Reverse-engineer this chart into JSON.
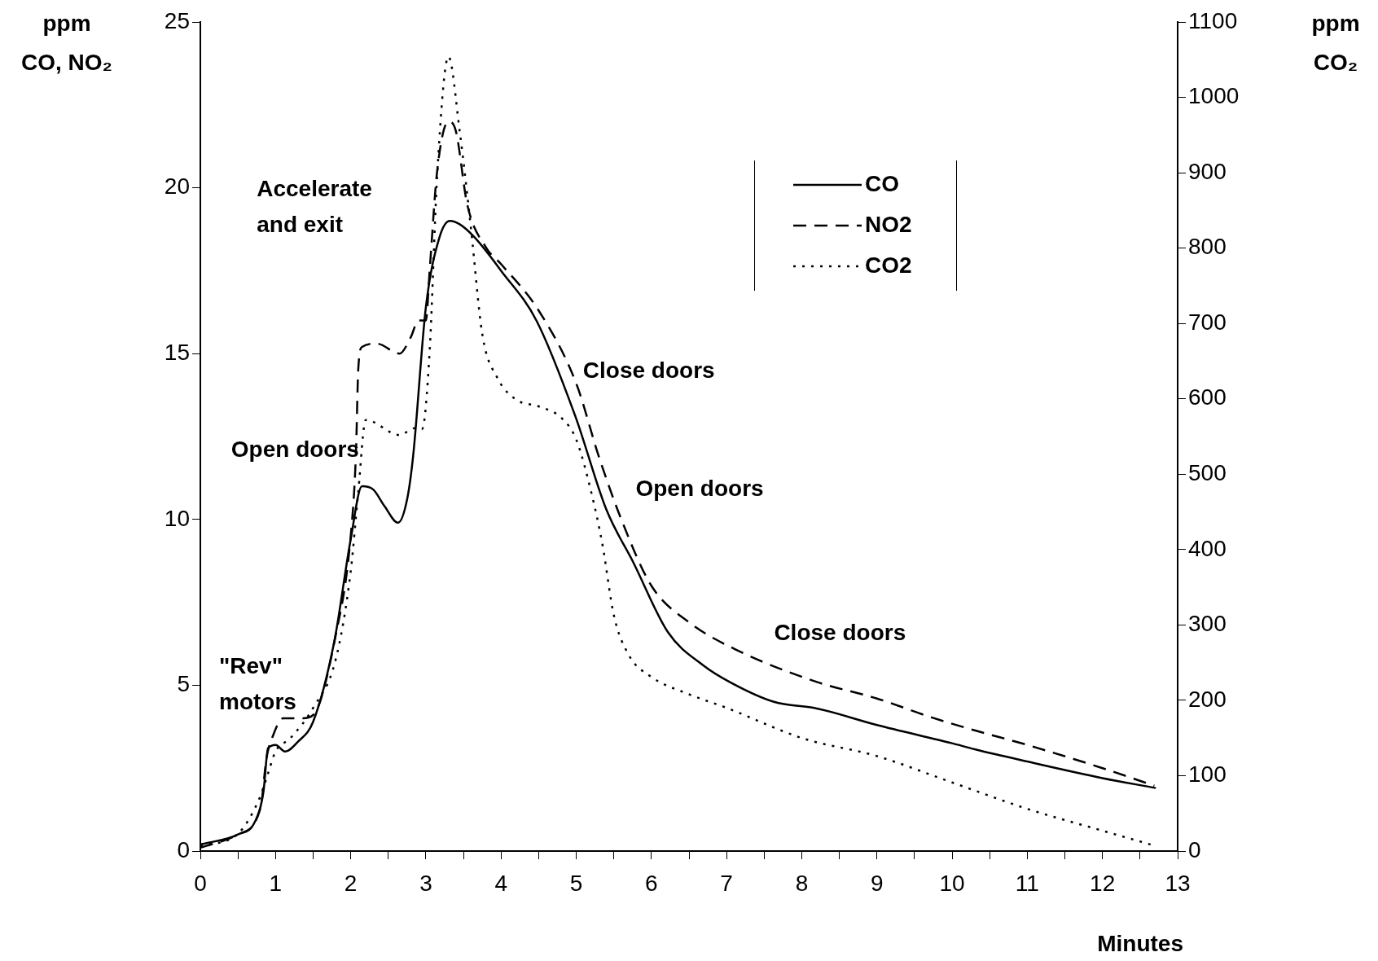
{
  "chart_data": {
    "type": "line",
    "xlabel": "Minutes",
    "ylabel": "ppm\nCO, NO₂",
    "y2label": "ppm\nCO₂",
    "xlim": [
      0,
      13
    ],
    "xticks": [
      0,
      {
        "value": 0.5,
        "label": null
      },
      1,
      {
        "value": 1.5,
        "label": null
      },
      2,
      {
        "value": 2.5,
        "label": null
      },
      3,
      {
        "value": 3.5,
        "label": null
      },
      4,
      {
        "value": 4.5,
        "label": null
      },
      5,
      {
        "value": 5.5,
        "label": null
      },
      6,
      {
        "value": 6.5,
        "label": null
      },
      7,
      {
        "value": 7.5,
        "label": null
      },
      8,
      {
        "value": 8.5,
        "label": null
      },
      9,
      {
        "value": 9.5,
        "label": null
      },
      10,
      {
        "value": 10.5,
        "label": null
      },
      11,
      {
        "value": 11.5,
        "label": null
      },
      12,
      {
        "value": 12.5,
        "label": null
      },
      13
    ],
    "ylim": [
      0,
      25
    ],
    "yticks": [
      0,
      5,
      10,
      15,
      20,
      25
    ],
    "y2lim": [
      0,
      1100
    ],
    "y2ticks": [
      0,
      100,
      200,
      300,
      400,
      500,
      600,
      700,
      800,
      900,
      1000,
      1100
    ],
    "grid": false,
    "legend": "top right",
    "marker": "none",
    "series": [
      {
        "name": "CO",
        "color": "#000000",
        "line_style": "solid",
        "x": [
          0,
          0.5,
          0.73,
          0.84,
          0.9,
          1.0,
          1.13,
          1.3,
          1.5,
          1.78,
          2.0,
          2.15,
          2.3,
          2.45,
          2.63,
          2.75,
          2.83,
          3.0,
          3.18,
          3.32,
          3.45,
          3.65,
          4.0,
          4.47,
          4.99,
          5.4,
          5.76,
          6.22,
          6.69,
          7.04,
          7.63,
          8.2,
          9.0,
          10.0,
          10.3,
          11.0,
          12.0,
          12.71
        ],
        "values": [
          0.2,
          0.5,
          0.9,
          1.8,
          3.1,
          3.2,
          3.0,
          3.3,
          3.9,
          6.3,
          9.4,
          11.0,
          10.9,
          10.4,
          9.9,
          10.6,
          11.9,
          16.4,
          18.5,
          19.0,
          18.9,
          18.5,
          17.5,
          16.0,
          13.1,
          10.3,
          8.7,
          6.6,
          5.6,
          5.1,
          4.5,
          4.3,
          3.8,
          3.25,
          3.07,
          2.7,
          2.2,
          1.9
        ]
      },
      {
        "name": "NO2",
        "color": "#000000",
        "line_style": "dashed",
        "x": [
          0,
          0.5,
          0.8,
          0.88,
          0.97,
          1.1,
          1.35,
          1.5,
          1.8,
          2.0,
          2.07,
          2.1,
          2.15,
          2.35,
          2.65,
          2.8,
          2.9,
          3.0,
          3.05,
          3.15,
          3.3,
          3.4,
          3.55,
          3.8,
          4.0,
          4.5,
          5.0,
          5.3,
          5.6,
          6.0,
          6.5,
          7.1,
          8.2,
          9.0,
          9.7,
          10.3,
          11.0,
          12.0,
          12.69
        ],
        "values": [
          0.1,
          0.5,
          1.3,
          2.8,
          3.5,
          4.0,
          4.0,
          4.1,
          6.5,
          9.5,
          12.0,
          14.5,
          15.2,
          15.3,
          15.0,
          15.5,
          16.0,
          16.0,
          17.5,
          20.5,
          22.0,
          21.7,
          19.5,
          18.2,
          17.7,
          16.3,
          14.1,
          11.9,
          10.0,
          8.0,
          6.9,
          6.1,
          5.1,
          4.6,
          4.05,
          3.64,
          3.2,
          2.5,
          1.97
        ]
      },
      {
        "name": "CO2",
        "color": "#000000",
        "line_style": "dotted",
        "axis": "y2",
        "x": [
          0,
          0.5,
          0.8,
          0.9,
          1.0,
          1.2,
          1.5,
          1.8,
          2.0,
          2.1,
          2.2,
          2.65,
          2.85,
          2.95,
          3.05,
          3.15,
          3.3,
          3.45,
          3.6,
          3.75,
          3.95,
          4.2,
          4.5,
          4.8,
          5.0,
          5.2,
          5.35,
          5.5,
          5.7,
          6.0,
          6.5,
          7.0,
          8.0,
          9.0,
          10.0,
          11.0,
          12.0,
          12.7
        ],
        "values": [
          7,
          23,
          73,
          103,
          132,
          150,
          190,
          254,
          371,
          476,
          572,
          552,
          561,
          560,
          663,
          896,
          1054,
          955,
          826,
          686,
          628,
          599,
          590,
          575,
          546,
          476,
          406,
          313,
          260,
          231,
          208,
          190,
          150,
          126,
          91,
          56,
          27,
          7
        ]
      }
    ],
    "annotations": [
      "Accelerate\nand exit",
      "Open doors",
      "\"Rev\"\nmotors",
      "Close doors",
      "Open doors",
      "Close doors"
    ]
  }
}
